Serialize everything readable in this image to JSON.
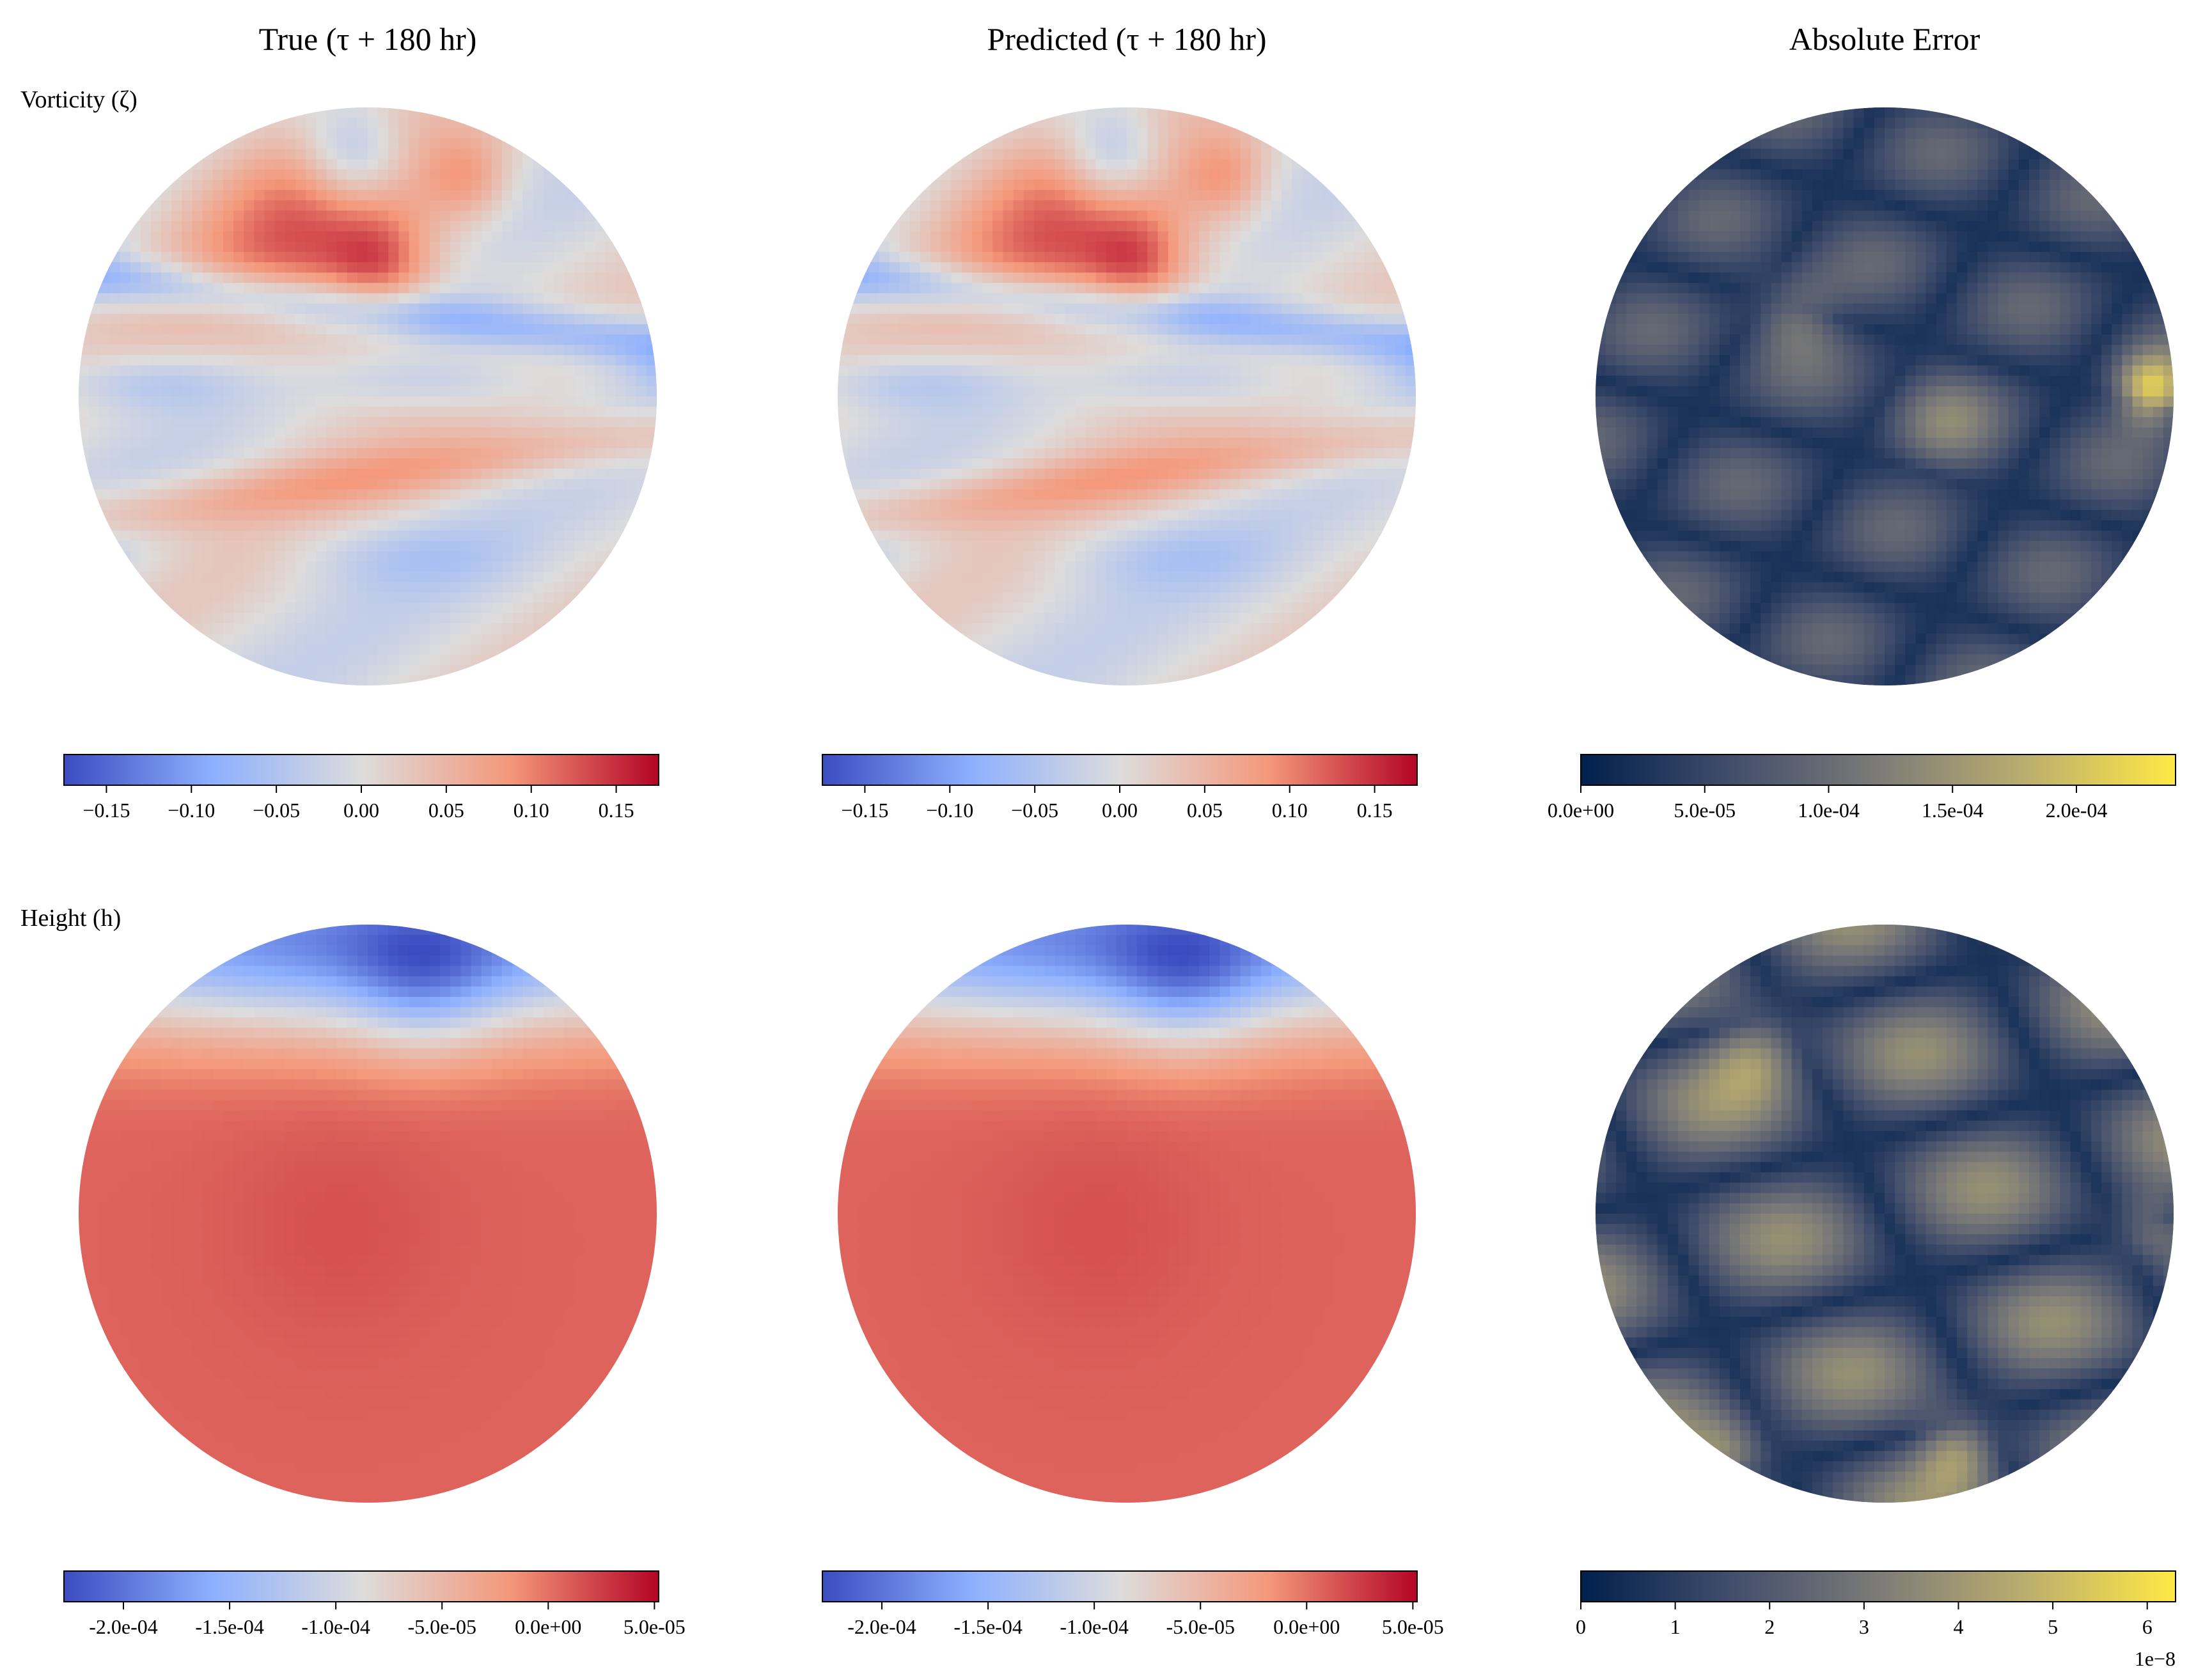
{
  "figure": {
    "column_titles": [
      "True (τ + 180 hr)",
      "Predicted (τ + 180 hr)",
      "Absolute Error"
    ],
    "row_labels": [
      "Vorticity (ζ)",
      "Height (h)"
    ]
  },
  "chart_data": [
    {
      "type": "heatmap",
      "panel": "vorticity-true",
      "projection": "orthographic sphere",
      "colormap": "coolwarm",
      "field_pattern": "vorticity",
      "colorbar": {
        "range": [
          -0.175,
          0.175
        ],
        "ticks": [
          -0.15,
          -0.1,
          -0.05,
          0.0,
          0.05,
          0.1,
          0.15
        ],
        "tick_labels": [
          "−0.15",
          "−0.10",
          "−0.05",
          "0.00",
          "0.05",
          "0.10",
          "0.15"
        ],
        "offset_label": ""
      }
    },
    {
      "type": "heatmap",
      "panel": "vorticity-predicted",
      "projection": "orthographic sphere",
      "colormap": "coolwarm",
      "field_pattern": "vorticity",
      "colorbar": {
        "range": [
          -0.175,
          0.175
        ],
        "ticks": [
          -0.15,
          -0.1,
          -0.05,
          0.0,
          0.05,
          0.1,
          0.15
        ],
        "tick_labels": [
          "−0.15",
          "−0.10",
          "−0.05",
          "0.00",
          "0.05",
          "0.10",
          "0.15"
        ],
        "offset_label": ""
      }
    },
    {
      "type": "heatmap",
      "panel": "vorticity-error",
      "projection": "orthographic sphere",
      "colormap": "cividis",
      "field_pattern": "error-vorticity",
      "colorbar": {
        "range": [
          0,
          0.00024
        ],
        "ticks": [
          0,
          5e-05,
          0.0001,
          0.00015,
          0.0002
        ],
        "tick_labels": [
          "0.0e+00",
          "5.0e-05",
          "1.0e-04",
          "1.5e-04",
          "2.0e-04"
        ],
        "offset_label": ""
      }
    },
    {
      "type": "heatmap",
      "panel": "height-true",
      "projection": "orthographic sphere",
      "colormap": "coolwarm",
      "field_pattern": "height",
      "colorbar": {
        "range": [
          -0.000228,
          5.2e-05
        ],
        "ticks": [
          -0.0002,
          -0.00015,
          -0.0001,
          -5e-05,
          0,
          5e-05
        ],
        "tick_labels": [
          "-2.0e-04",
          "-1.5e-04",
          "-1.0e-04",
          "-5.0e-05",
          "0.0e+00",
          "5.0e-05"
        ],
        "offset_label": ""
      }
    },
    {
      "type": "heatmap",
      "panel": "height-predicted",
      "projection": "orthographic sphere",
      "colormap": "coolwarm",
      "field_pattern": "height",
      "colorbar": {
        "range": [
          -0.000228,
          5.2e-05
        ],
        "ticks": [
          -0.0002,
          -0.00015,
          -0.0001,
          -5e-05,
          0,
          5e-05
        ],
        "tick_labels": [
          "-2.0e-04",
          "-1.5e-04",
          "-1.0e-04",
          "-5.0e-05",
          "0.0e+00",
          "5.0e-05"
        ],
        "offset_label": ""
      }
    },
    {
      "type": "heatmap",
      "panel": "height-error",
      "projection": "orthographic sphere",
      "colormap": "cividis",
      "field_pattern": "error-height",
      "colorbar": {
        "range": [
          0,
          6.3
        ],
        "ticks": [
          0,
          1,
          2,
          3,
          4,
          5,
          6
        ],
        "tick_labels": [
          "0",
          "1",
          "2",
          "3",
          "4",
          "5",
          "6"
        ],
        "offset_label": "1e−8"
      }
    }
  ]
}
